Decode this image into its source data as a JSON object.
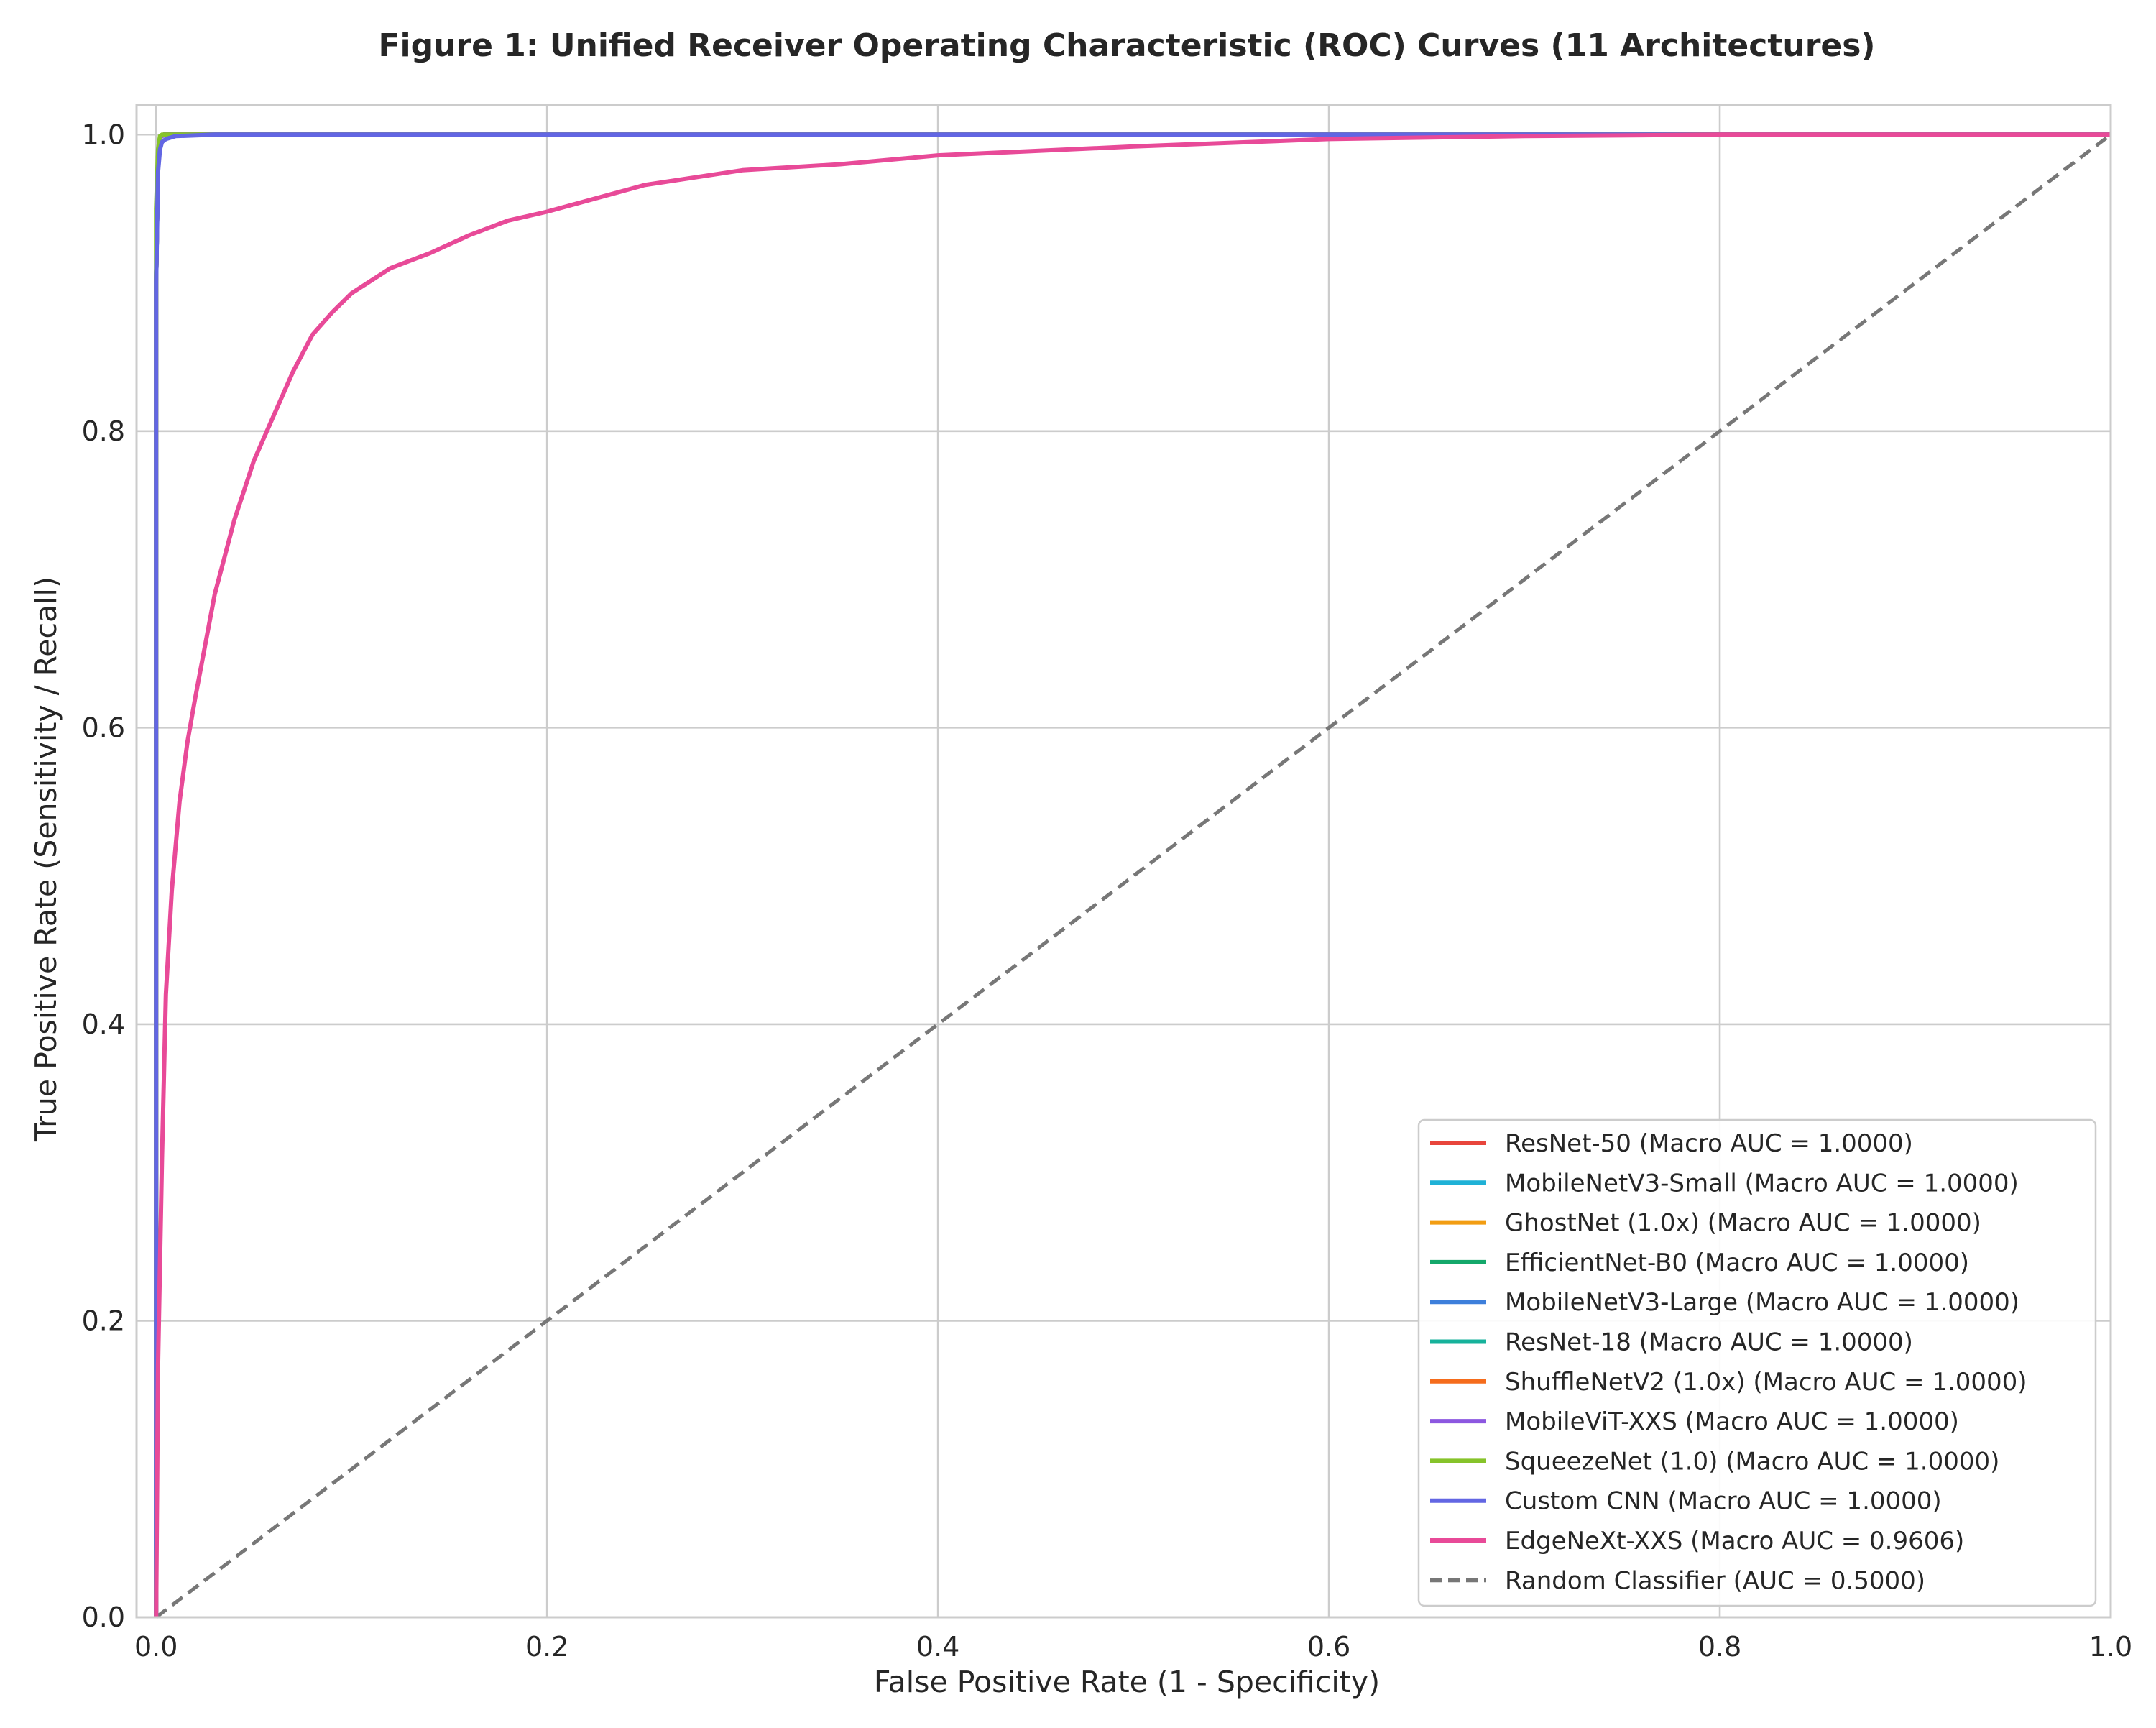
{
  "chart_data": {
    "type": "line",
    "title": "Figure 1: Unified Receiver Operating Characteristic (ROC) Curves (11 Architectures)",
    "xlabel": "False Positive Rate (1 - Specificity)",
    "ylabel": "True Positive Rate (Sensitivity / Recall)",
    "xlim": [
      -0.01,
      1.0
    ],
    "ylim": [
      0.0,
      1.02
    ],
    "xticks": [
      0.0,
      0.2,
      0.4,
      0.6,
      0.8,
      1.0
    ],
    "yticks": [
      0.0,
      0.2,
      0.4,
      0.6,
      0.8,
      1.0
    ],
    "grid": true,
    "legend_position": "lower-right",
    "series": [
      {
        "name": "ResNet-50 (Macro AUC = 1.0000)",
        "color": "#e8453c",
        "style": "solid",
        "x": [
          0.0,
          0.0,
          0.001,
          0.002,
          0.004,
          1.0
        ],
        "y": [
          0.0,
          0.9,
          0.985,
          0.998,
          1.0,
          1.0
        ]
      },
      {
        "name": "MobileNetV3-Small (Macro AUC = 1.0000)",
        "color": "#1fb1d6",
        "style": "solid",
        "x": [
          0.0,
          0.0,
          0.001,
          0.002,
          0.004,
          1.0
        ],
        "y": [
          0.0,
          0.9,
          0.985,
          0.998,
          1.0,
          1.0
        ]
      },
      {
        "name": "GhostNet (1.0x) (Macro AUC = 1.0000)",
        "color": "#f29d12",
        "style": "solid",
        "x": [
          0.0,
          0.0,
          0.001,
          0.002,
          0.004,
          1.0
        ],
        "y": [
          0.0,
          0.9,
          0.985,
          0.998,
          1.0,
          1.0
        ]
      },
      {
        "name": "EfficientNet-B0 (Macro AUC = 1.0000)",
        "color": "#14a86b",
        "style": "solid",
        "x": [
          0.0,
          0.0,
          0.001,
          0.002,
          0.004,
          1.0
        ],
        "y": [
          0.0,
          0.9,
          0.985,
          0.998,
          1.0,
          1.0
        ]
      },
      {
        "name": "MobileNetV3-Large (Macro AUC = 1.0000)",
        "color": "#3d7fdb",
        "style": "solid",
        "x": [
          0.0,
          0.0,
          0.001,
          0.002,
          0.004,
          1.0
        ],
        "y": [
          0.0,
          0.9,
          0.985,
          0.998,
          1.0,
          1.0
        ]
      },
      {
        "name": "ResNet-18 (Macro AUC = 1.0000)",
        "color": "#16b29b",
        "style": "solid",
        "x": [
          0.0,
          0.0,
          0.001,
          0.002,
          0.004,
          1.0
        ],
        "y": [
          0.0,
          0.9,
          0.985,
          0.998,
          1.0,
          1.0
        ]
      },
      {
        "name": "ShuffleNetV2 (1.0x) (Macro AUC = 1.0000)",
        "color": "#f56c1c",
        "style": "solid",
        "x": [
          0.0,
          0.0,
          0.001,
          0.002,
          0.004,
          1.0
        ],
        "y": [
          0.0,
          0.9,
          0.985,
          0.998,
          1.0,
          1.0
        ]
      },
      {
        "name": "MobileViT-XXS (Macro AUC = 1.0000)",
        "color": "#8c57e0",
        "style": "solid",
        "x": [
          0.0,
          0.0,
          0.001,
          0.002,
          0.004,
          1.0
        ],
        "y": [
          0.0,
          0.9,
          0.985,
          0.998,
          1.0,
          1.0
        ]
      },
      {
        "name": "SqueezeNet (1.0) (Macro AUC = 1.0000)",
        "color": "#86c32a",
        "style": "solid",
        "x": [
          0.0,
          0.0,
          0.001,
          0.002,
          0.003,
          1.0
        ],
        "y": [
          0.0,
          0.95,
          0.99,
          0.999,
          1.0,
          1.0
        ]
      },
      {
        "name": "Custom CNN (Macro AUC = 1.0000)",
        "color": "#6266e3",
        "style": "solid",
        "x": [
          0.0,
          0.0,
          0.001,
          0.002,
          0.003,
          0.005,
          0.01,
          0.03,
          1.0
        ],
        "y": [
          0.0,
          0.9,
          0.975,
          0.99,
          0.995,
          0.997,
          0.999,
          1.0,
          1.0
        ]
      },
      {
        "name": "EdgeNeXt-XXS (Macro AUC = 0.9606)",
        "color": "#e84a98",
        "style": "solid",
        "x": [
          0.0,
          0.001,
          0.003,
          0.005,
          0.008,
          0.012,
          0.016,
          0.02,
          0.03,
          0.04,
          0.05,
          0.06,
          0.07,
          0.08,
          0.09,
          0.1,
          0.12,
          0.14,
          0.16,
          0.18,
          0.2,
          0.25,
          0.3,
          0.35,
          0.4,
          0.5,
          0.6,
          0.7,
          0.8,
          0.9,
          1.0
        ],
        "y": [
          0.0,
          0.17,
          0.31,
          0.42,
          0.49,
          0.55,
          0.59,
          0.62,
          0.69,
          0.74,
          0.78,
          0.81,
          0.84,
          0.865,
          0.88,
          0.893,
          0.91,
          0.92,
          0.932,
          0.942,
          0.948,
          0.966,
          0.976,
          0.98,
          0.986,
          0.992,
          0.997,
          0.999,
          1.0,
          1.0,
          1.0
        ]
      },
      {
        "name": "Random Classifier (AUC = 0.5000)",
        "color": "#777777",
        "style": "dashed",
        "x": [
          0.0,
          1.0
        ],
        "y": [
          0.0,
          1.0
        ]
      }
    ]
  }
}
